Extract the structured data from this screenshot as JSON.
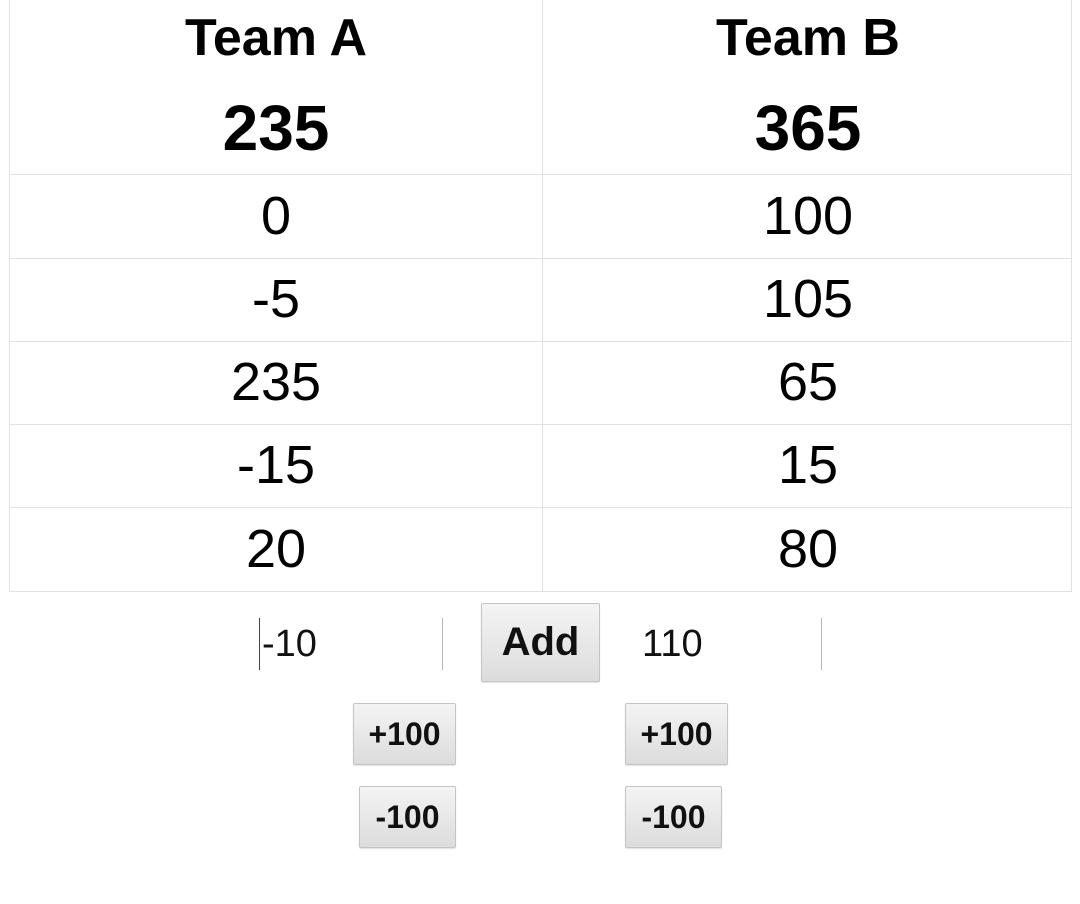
{
  "teams": {
    "a": {
      "name": "Team A",
      "total": "235"
    },
    "b": {
      "name": "Team B",
      "total": "365"
    }
  },
  "rounds": [
    {
      "a": "0",
      "b": "100"
    },
    {
      "a": "-5",
      "b": "105"
    },
    {
      "a": "235",
      "b": "65"
    },
    {
      "a": "-15",
      "b": "15"
    },
    {
      "a": "20",
      "b": "80"
    }
  ],
  "entry": {
    "a_value": "-10",
    "b_value": "110",
    "add_label": "Add"
  },
  "quick": {
    "plus_label": "+100",
    "minus_label": "-100"
  }
}
